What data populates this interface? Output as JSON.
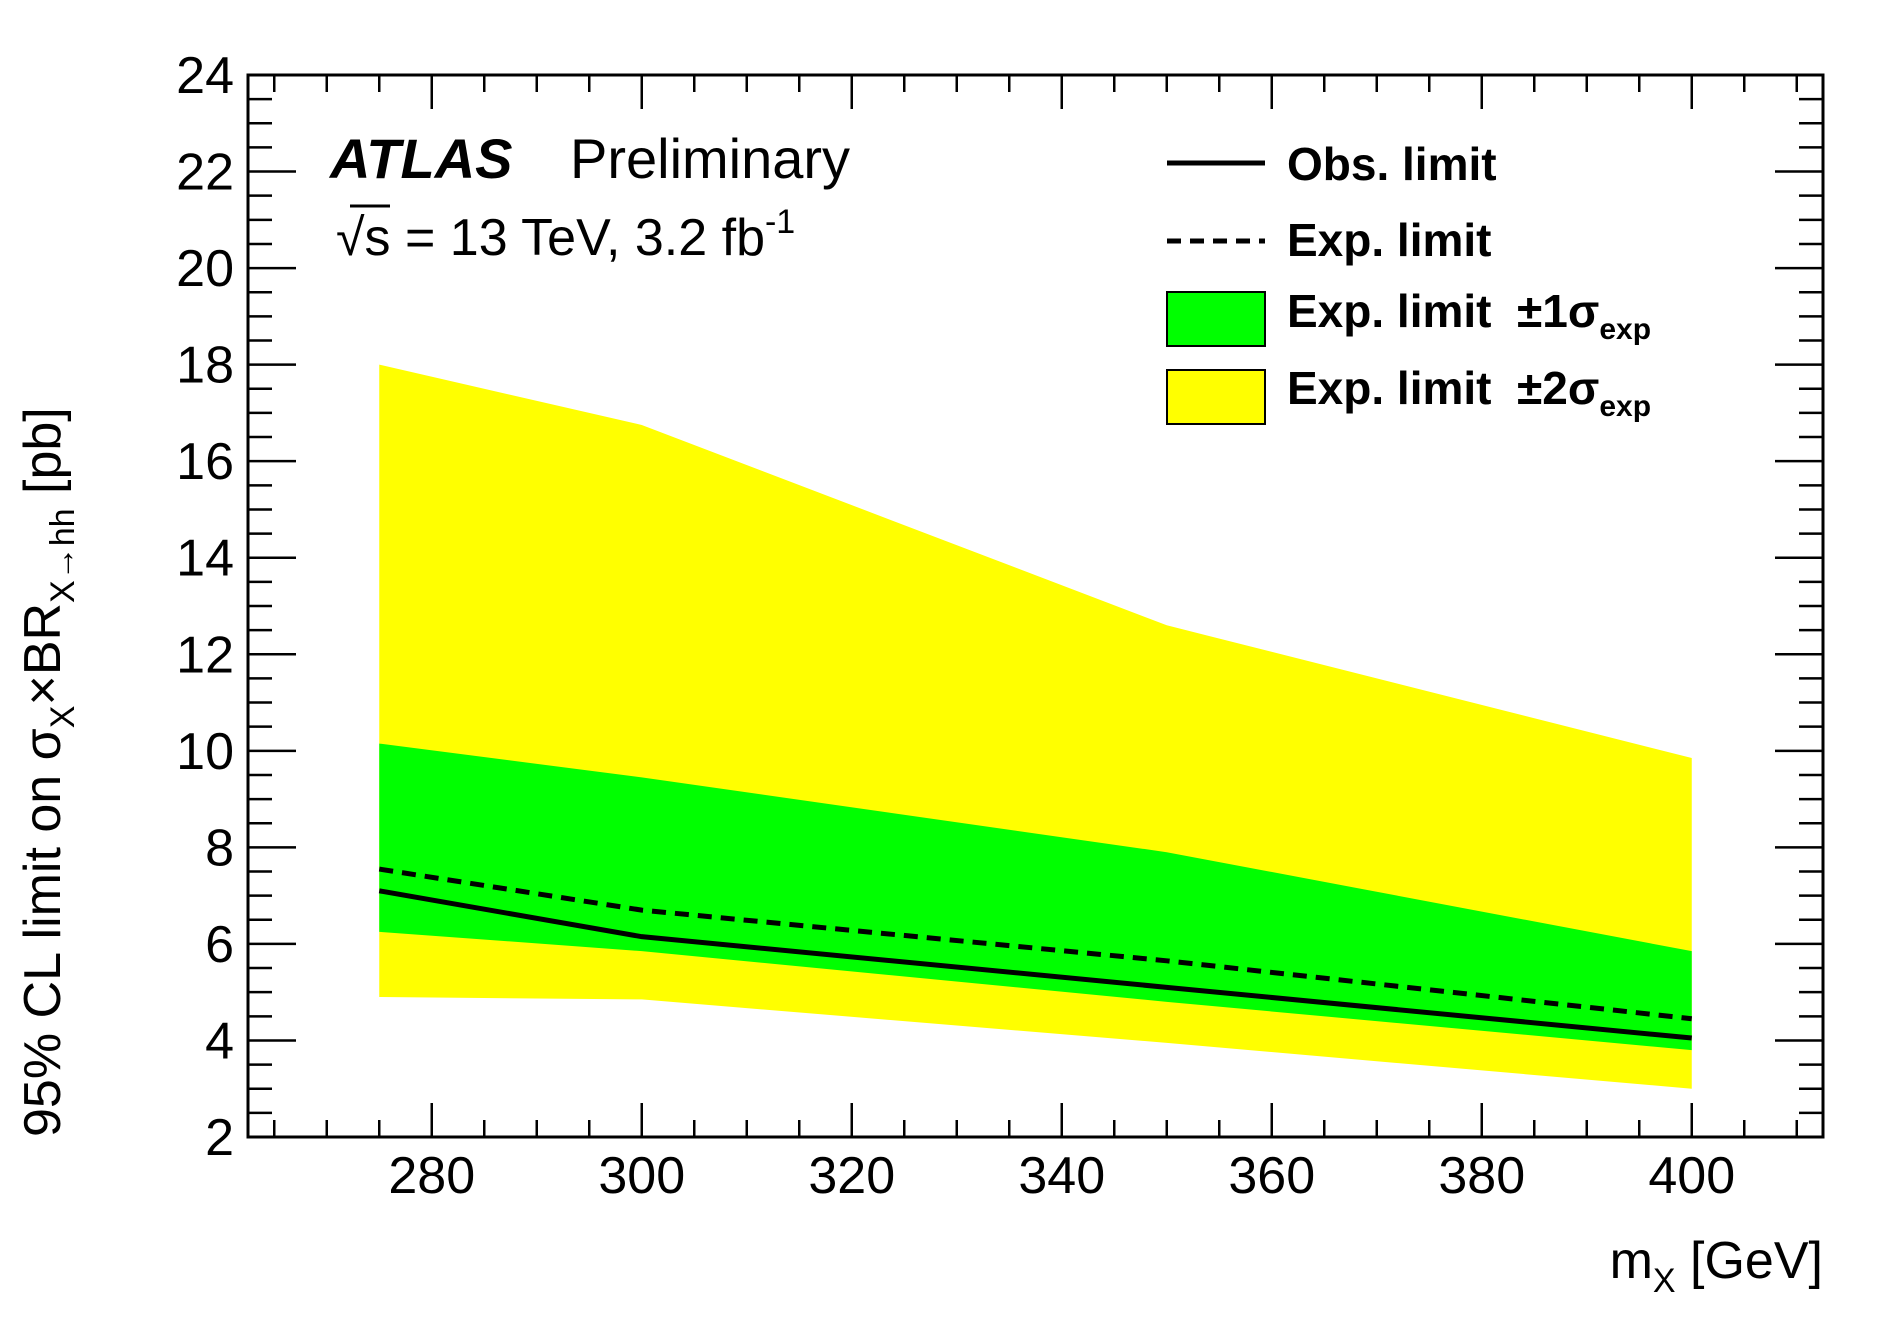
{
  "chart_data": {
    "type": "area",
    "experiment": "ATLAS",
    "status": "Preliminary",
    "energy_lumi": {
      "sqrt": "√",
      "s": "s",
      "text": " = 13 TeV, 3.2 fb",
      "sup": "-1"
    },
    "xlabel": {
      "main": "m",
      "sub": "X",
      "unit": " [GeV]"
    },
    "ylabel": {
      "prefix": "95% CL limit on σ",
      "sub1": "X",
      "mid": "×BR",
      "sub2": "X→hh",
      "unit": " [pb]"
    },
    "xlim": [
      262.5,
      412.5
    ],
    "ylim": [
      2,
      24
    ],
    "x_ticks": [
      "280",
      "300",
      "320",
      "340",
      "360",
      "380",
      "400"
    ],
    "y_ticks": [
      "2",
      "4",
      "6",
      "8",
      "10",
      "12",
      "14",
      "16",
      "18",
      "20",
      "22",
      "24"
    ],
    "x": [
      275,
      300,
      350,
      400
    ],
    "observed": [
      7.1,
      6.15,
      5.1,
      4.05
    ],
    "expected": [
      7.55,
      6.7,
      5.65,
      4.45
    ],
    "band_1sigma": {
      "lower": [
        6.25,
        5.85,
        4.8,
        3.8
      ],
      "upper": [
        10.15,
        9.45,
        7.9,
        5.85
      ]
    },
    "band_2sigma": {
      "lower": [
        4.9,
        4.85,
        3.95,
        3.0
      ],
      "upper": [
        18.0,
        16.75,
        12.6,
        9.85
      ]
    },
    "legend": {
      "position": "top-right",
      "obs_label": "Obs. limit",
      "exp_label": "Exp. limit",
      "band1_label": "Exp. limit  ±1σ",
      "band1_sub": "exp",
      "band2_label": "Exp. limit  ±2σ",
      "band2_sub": "exp"
    },
    "colors": {
      "band_1sigma": "#00ff00",
      "band_2sigma": "#ffff00",
      "lines": "#000000"
    },
    "grid": false
  }
}
